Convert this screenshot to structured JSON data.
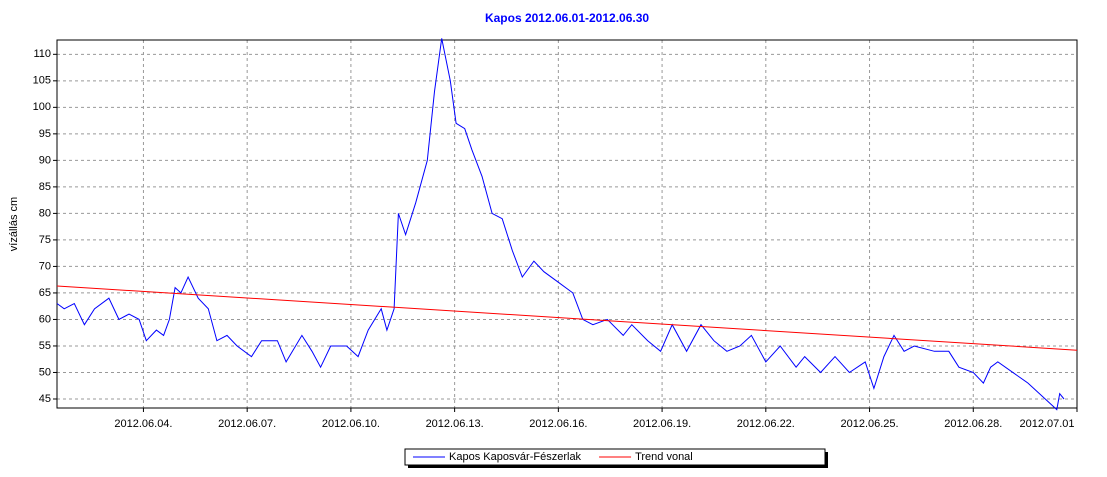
{
  "chart_data": {
    "type": "line",
    "title": "Kapos 2012.06.01-2012.06.30",
    "y_label": "vízállás cm",
    "x": [
      "2012-06-01T12:00",
      "2012-06-01T17:00",
      "2012-06-02T00:00",
      "2012-06-02T07:00",
      "2012-06-02T14:00",
      "2012-06-03T00:00",
      "2012-06-03T07:00",
      "2012-06-03T14:00",
      "2012-06-03T21:00",
      "2012-06-04T02:00",
      "2012-06-04T09:00",
      "2012-06-04T14:00",
      "2012-06-04T18:00",
      "2012-06-04T22:00",
      "2012-06-05T02:00",
      "2012-06-05T07:00",
      "2012-06-05T14:00",
      "2012-06-05T21:00",
      "2012-06-06T03:00",
      "2012-06-06T10:00",
      "2012-06-06T17:00",
      "2012-06-07T03:00",
      "2012-06-07T10:00",
      "2012-06-07T21:00",
      "2012-06-08T03:00",
      "2012-06-08T14:00",
      "2012-06-08T21:00",
      "2012-06-09T03:00",
      "2012-06-09T10:00",
      "2012-06-09T21:00",
      "2012-06-10T05:00",
      "2012-06-10T12:00",
      "2012-06-10T21:00",
      "2012-06-11T01:00",
      "2012-06-11T06:00",
      "2012-06-11T09:00",
      "2012-06-11T14:00",
      "2012-06-11T21:00",
      "2012-06-12T05:00",
      "2012-06-12T10:00",
      "2012-06-12T15:00",
      "2012-06-12T21:00",
      "2012-06-13T01:00",
      "2012-06-13T07:00",
      "2012-06-13T12:00",
      "2012-06-13T19:00",
      "2012-06-14T02:00",
      "2012-06-14T09:00",
      "2012-06-14T16:00",
      "2012-06-14T23:00",
      "2012-06-15T07:00",
      "2012-06-15T14:00",
      "2012-06-16T00:00",
      "2012-06-16T10:00",
      "2012-06-16T17:00",
      "2012-06-17T00:00",
      "2012-06-17T10:00",
      "2012-06-17T21:00",
      "2012-06-18T03:00",
      "2012-06-18T14:00",
      "2012-06-18T23:00",
      "2012-06-19T07:00",
      "2012-06-19T17:00",
      "2012-06-20T03:00",
      "2012-06-20T12:00",
      "2012-06-20T21:00",
      "2012-06-21T06:00",
      "2012-06-21T14:00",
      "2012-06-22T00:00",
      "2012-06-22T10:00",
      "2012-06-22T21:00",
      "2012-06-23T03:00",
      "2012-06-23T14:00",
      "2012-06-24T00:00",
      "2012-06-24T10:00",
      "2012-06-24T21:00",
      "2012-06-25T03:00",
      "2012-06-25T10:00",
      "2012-06-25T17:00",
      "2012-06-26T00:00",
      "2012-06-26T07:00",
      "2012-06-26T21:00",
      "2012-06-27T07:00",
      "2012-06-27T14:00",
      "2012-06-28T00:00",
      "2012-06-28T07:00",
      "2012-06-28T12:00",
      "2012-06-28T17:00",
      "2012-06-29T14:00",
      "2012-06-30T10:00",
      "2012-06-30T12:00",
      "2012-06-30T15:00"
    ],
    "series": [
      {
        "name": "Kapos Kaposvár-Fészerlak",
        "color": "#0000ff",
        "values": [
          63,
          62,
          63,
          59,
          62,
          64,
          60,
          61,
          60,
          56,
          58,
          57,
          60,
          66,
          65,
          68,
          64,
          62,
          56,
          57,
          55,
          53,
          56,
          56,
          52,
          57,
          54,
          51,
          55,
          55,
          53,
          58,
          62,
          58,
          62,
          80,
          76,
          82,
          90,
          103,
          113,
          105,
          97,
          96,
          92,
          87,
          80,
          79,
          73,
          68,
          71,
          69,
          67,
          65,
          60,
          59,
          60,
          57,
          59,
          56,
          54,
          59,
          54,
          59,
          56,
          54,
          55,
          57,
          52,
          55,
          51,
          53,
          50,
          53,
          50,
          52,
          47,
          53,
          57,
          54,
          55,
          54,
          54,
          51,
          50,
          48,
          51,
          52,
          48,
          43,
          46,
          45
        ]
      },
      {
        "name": "Trend vonal",
        "color": "#ff0000",
        "x": [
          "2012-06-01T12:00",
          "2012-07-01T00:00"
        ],
        "values": [
          66.3,
          54.2
        ]
      }
    ],
    "xlim": [
      "2012-06-01T12:00",
      "2012-07-01T00:00"
    ],
    "xticks": [
      {
        "value": "2012-06-04",
        "label": "2012.06.04."
      },
      {
        "value": "2012-06-07",
        "label": "2012.06.07."
      },
      {
        "value": "2012-06-10",
        "label": "2012.06.10."
      },
      {
        "value": "2012-06-13",
        "label": "2012.06.13."
      },
      {
        "value": "2012-06-16",
        "label": "2012.06.16."
      },
      {
        "value": "2012-06-19",
        "label": "2012.06.19."
      },
      {
        "value": "2012-06-22",
        "label": "2012.06.22."
      },
      {
        "value": "2012-06-25",
        "label": "2012.06.25."
      },
      {
        "value": "2012-06-28",
        "label": "2012.06.28."
      },
      {
        "value": "2012-07-01",
        "label": "2012.07.01"
      }
    ],
    "ylim": [
      43.3,
      112.7
    ],
    "yticks": [
      45,
      50,
      55,
      60,
      65,
      70,
      75,
      80,
      85,
      90,
      95,
      100,
      105,
      110
    ],
    "grid": true
  }
}
